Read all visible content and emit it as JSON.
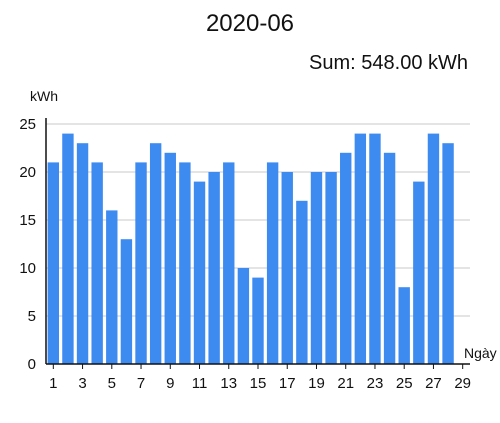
{
  "chart_data": {
    "type": "bar",
    "title": "2020-06",
    "subtitle": "Sum: 548.00 kWh",
    "ylabel": "kWh",
    "xlabel": "Ngày",
    "ylim": [
      0,
      25
    ],
    "yticks": [
      0,
      5,
      10,
      15,
      20,
      25
    ],
    "x": [
      1,
      2,
      3,
      4,
      5,
      6,
      7,
      8,
      9,
      10,
      11,
      12,
      13,
      14,
      15,
      16,
      17,
      18,
      19,
      20,
      21,
      22,
      23,
      24,
      25,
      26,
      27,
      28
    ],
    "xticks": [
      1,
      3,
      5,
      7,
      9,
      11,
      13,
      15,
      17,
      19,
      21,
      23,
      25,
      27,
      29
    ],
    "xlim": [
      0.5,
      29.5
    ],
    "values": [
      21,
      24,
      23,
      21,
      16,
      13,
      21,
      23,
      22,
      21,
      19,
      20,
      21,
      10,
      9,
      21,
      20,
      17,
      20,
      20,
      22,
      24,
      24,
      22,
      8,
      19,
      24,
      23
    ],
    "bar_color": "#3d8bf0",
    "grid": true,
    "legend": "none"
  }
}
